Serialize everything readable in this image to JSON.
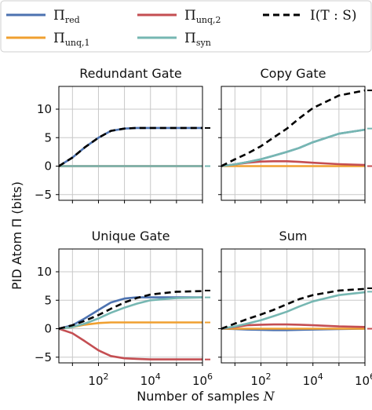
{
  "legend": [
    {
      "sym": "Π",
      "sub": "red",
      "color": "#4C72B0",
      "dashed": false
    },
    {
      "sym": "Π",
      "sub": "unq,2",
      "color": "#C44E52",
      "dashed": false
    },
    {
      "sym": "I(T : S)",
      "sub": "",
      "color": "#000000",
      "dashed": true
    },
    {
      "sym": "Π",
      "sub": "unq,1",
      "color": "#F0A030",
      "dashed": false
    },
    {
      "sym": "Π",
      "sub": "syn",
      "color": "#76B7B2",
      "dashed": false
    }
  ],
  "ylabel": "PID Atom Π (bits)",
  "xlabel": "Number of samples N",
  "chart_data": [
    {
      "type": "line",
      "title": "Redundant Gate",
      "x": [
        3,
        10,
        30,
        100,
        300,
        1000,
        3000,
        10000,
        100000,
        1000000
      ],
      "xscale": "log",
      "xlim": [
        3,
        1000000
      ],
      "ylim": [
        -6,
        14
      ],
      "xticks": [
        "10^2",
        "10^4",
        "10^6"
      ],
      "yticks": [
        -5,
        0,
        5,
        10
      ],
      "series": [
        {
          "key": "red",
          "values": [
            0,
            1.5,
            3.3,
            5.0,
            6.2,
            6.6,
            6.7,
            6.7,
            6.7,
            6.7
          ]
        },
        {
          "key": "unq1",
          "values": [
            0,
            0,
            0,
            0,
            0,
            0,
            0,
            0,
            0,
            0
          ]
        },
        {
          "key": "unq2",
          "values": [
            0,
            0,
            0,
            0,
            0,
            0,
            0,
            0,
            0,
            0
          ]
        },
        {
          "key": "syn",
          "values": [
            0,
            0,
            0,
            0,
            0,
            0,
            0,
            0,
            0,
            0
          ]
        },
        {
          "key": "mi",
          "values": [
            0,
            1.5,
            3.3,
            5.0,
            6.2,
            6.6,
            6.7,
            6.7,
            6.7,
            6.7
          ]
        }
      ],
      "asymptotes": [
        {
          "key": "mi",
          "value": 6.7
        },
        {
          "key": "syn",
          "value": 0
        }
      ]
    },
    {
      "type": "line",
      "title": "Copy Gate",
      "x": [
        3,
        10,
        30,
        100,
        300,
        1000,
        3000,
        10000,
        100000,
        1000000
      ],
      "xscale": "log",
      "xlim": [
        3,
        1000000
      ],
      "ylim": [
        -6,
        14
      ],
      "xticks": [
        "10^2",
        "10^4",
        "10^6"
      ],
      "yticks": [
        -5,
        0,
        5,
        10
      ],
      "series": [
        {
          "key": "red",
          "values": [
            0,
            0.3,
            0.7,
            1.2,
            1.8,
            2.5,
            3.2,
            4.2,
            5.7,
            6.4
          ]
        },
        {
          "key": "unq1",
          "values": [
            0,
            0,
            0,
            0,
            0,
            0,
            0,
            0,
            0,
            0
          ]
        },
        {
          "key": "unq2",
          "values": [
            0,
            0.3,
            0.6,
            0.8,
            0.85,
            0.85,
            0.75,
            0.6,
            0.35,
            0.2
          ]
        },
        {
          "key": "syn",
          "values": [
            0,
            0.3,
            0.7,
            1.2,
            1.8,
            2.5,
            3.2,
            4.2,
            5.7,
            6.4
          ]
        },
        {
          "key": "mi",
          "values": [
            0,
            1.2,
            2.2,
            3.5,
            5.0,
            6.6,
            8.4,
            10.2,
            12.4,
            13.3
          ]
        }
      ],
      "asymptotes": [
        {
          "key": "mi",
          "value": 13.3
        },
        {
          "key": "syn",
          "value": 6.6
        },
        {
          "key": "unq2",
          "value": 0
        }
      ]
    },
    {
      "type": "line",
      "title": "Unique Gate",
      "x": [
        3,
        10,
        30,
        100,
        300,
        1000,
        3000,
        10000,
        100000,
        1000000
      ],
      "xscale": "log",
      "xlim": [
        3,
        1000000
      ],
      "ylim": [
        -6,
        14
      ],
      "xticks": [
        "10^2",
        "10^4",
        "10^6"
      ],
      "yticks": [
        -5,
        0,
        5,
        10
      ],
      "series": [
        {
          "key": "red",
          "values": [
            0,
            0.6,
            1.8,
            3.3,
            4.6,
            5.3,
            5.5,
            5.5,
            5.5,
            5.5
          ]
        },
        {
          "key": "unq1",
          "values": [
            0,
            0.3,
            0.7,
            1.0,
            1.1,
            1.1,
            1.1,
            1.1,
            1.1,
            1.1
          ]
        },
        {
          "key": "unq2",
          "values": [
            0,
            -0.8,
            -2.2,
            -3.8,
            -4.8,
            -5.2,
            -5.3,
            -5.4,
            -5.4,
            -5.4
          ]
        },
        {
          "key": "syn",
          "values": [
            0,
            0.3,
            0.9,
            1.8,
            2.8,
            3.7,
            4.4,
            5.0,
            5.4,
            5.5
          ]
        },
        {
          "key": "mi",
          "values": [
            0,
            0.6,
            1.4,
            2.4,
            3.5,
            4.6,
            5.4,
            6.0,
            6.5,
            6.6
          ]
        }
      ],
      "asymptotes": [
        {
          "key": "mi",
          "value": 6.7
        },
        {
          "key": "syn",
          "value": 5.5
        },
        {
          "key": "unq1",
          "value": 1.1
        },
        {
          "key": "unq2",
          "value": -5.4
        }
      ]
    },
    {
      "type": "line",
      "title": "Sum",
      "x": [
        3,
        10,
        30,
        100,
        300,
        1000,
        3000,
        10000,
        100000,
        1000000
      ],
      "xscale": "log",
      "xlim": [
        3,
        1000000
      ],
      "ylim": [
        -6,
        14
      ],
      "xticks": [
        "10^2",
        "10^4",
        "10^6"
      ],
      "yticks": [
        -5,
        0,
        5,
        10
      ],
      "series": [
        {
          "key": "red",
          "values": [
            0,
            -0.05,
            -0.15,
            -0.2,
            -0.25,
            -0.25,
            -0.2,
            -0.15,
            -0.05,
            0
          ]
        },
        {
          "key": "unq1",
          "values": [
            0,
            0,
            0,
            0,
            0,
            0,
            0,
            0,
            0,
            0
          ]
        },
        {
          "key": "unq2",
          "values": [
            0,
            0.3,
            0.6,
            0.7,
            0.75,
            0.75,
            0.7,
            0.6,
            0.4,
            0.3
          ]
        },
        {
          "key": "syn",
          "values": [
            0,
            0.4,
            0.9,
            1.5,
            2.2,
            3.0,
            3.9,
            4.8,
            5.9,
            6.4
          ]
        },
        {
          "key": "mi",
          "values": [
            0,
            0.9,
            1.7,
            2.5,
            3.3,
            4.3,
            5.2,
            5.9,
            6.7,
            7.0
          ]
        }
      ],
      "asymptotes": [
        {
          "key": "mi",
          "value": 7.1
        },
        {
          "key": "syn",
          "value": 6.5
        },
        {
          "key": "unq2",
          "value": 0
        }
      ]
    }
  ]
}
